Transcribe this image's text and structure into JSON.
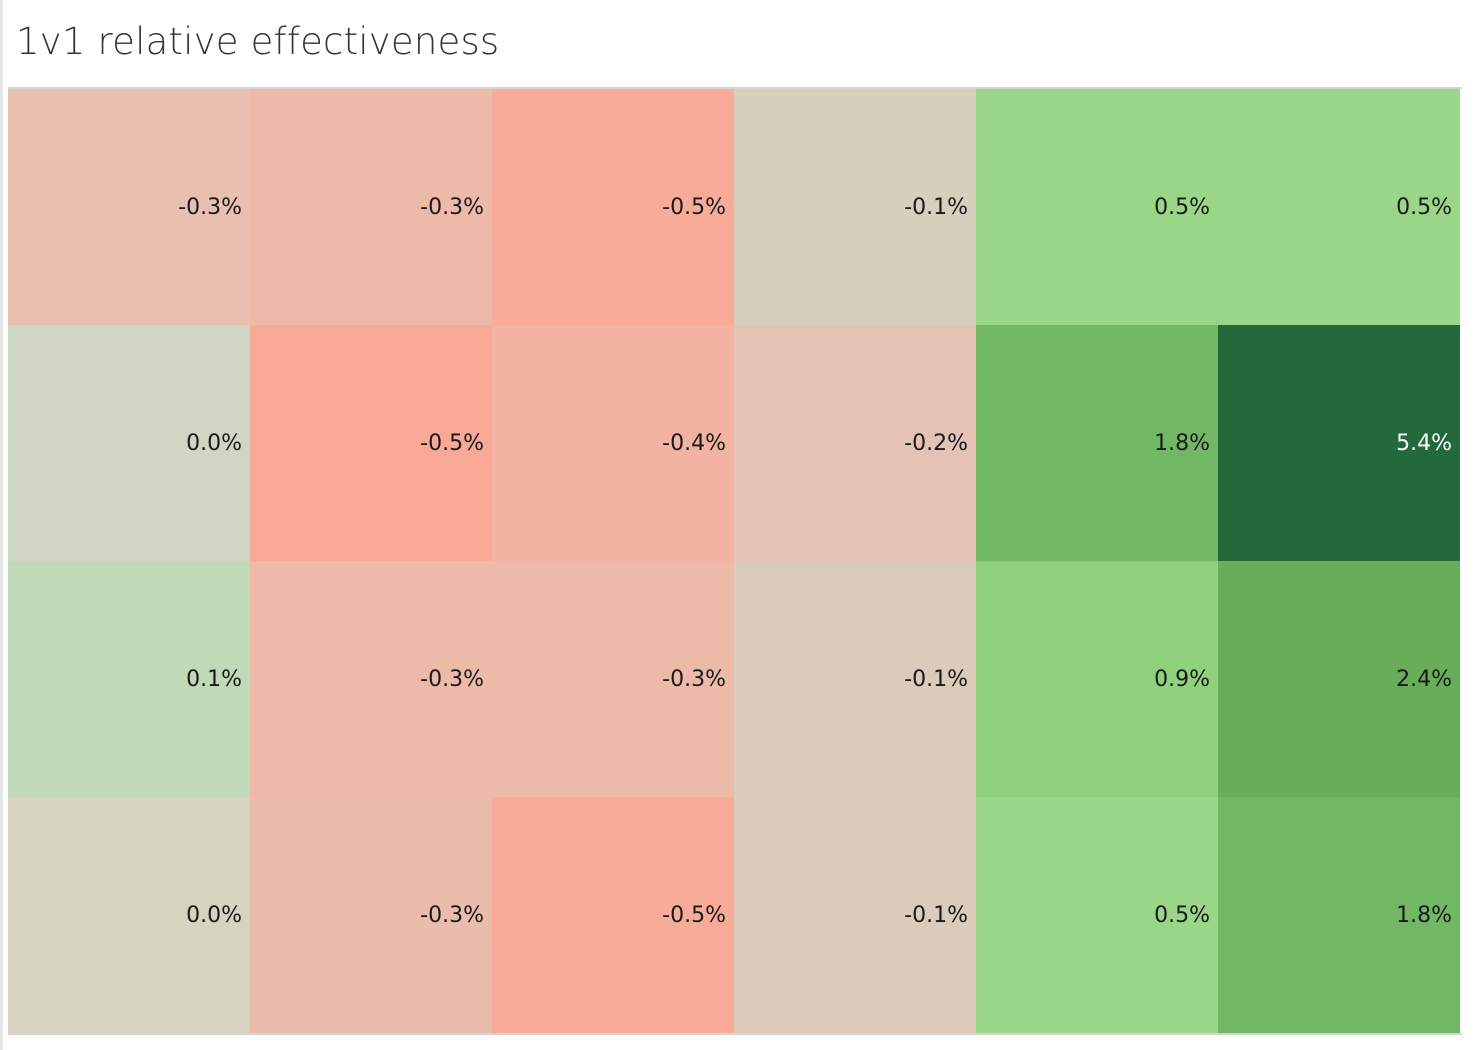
{
  "title": "1v1 relative effectiveness",
  "chart_data": {
    "type": "heatmap",
    "title": "1v1 relative effectiveness",
    "rows": 4,
    "columns": 6,
    "values": [
      [
        -0.3,
        -0.3,
        -0.5,
        -0.1,
        0.5,
        0.5
      ],
      [
        0.0,
        -0.5,
        -0.4,
        -0.2,
        1.8,
        5.4
      ],
      [
        0.1,
        -0.3,
        -0.3,
        -0.1,
        0.9,
        2.4
      ],
      [
        0.0,
        -0.3,
        -0.5,
        -0.1,
        0.5,
        1.8
      ]
    ],
    "labels": [
      [
        "-0.3%",
        "-0.3%",
        "-0.5%",
        "-0.1%",
        "0.5%",
        "0.5%"
      ],
      [
        "0.0%",
        "-0.5%",
        "-0.4%",
        "-0.2%",
        "1.8%",
        "5.4%"
      ],
      [
        "0.1%",
        "-0.3%",
        "-0.3%",
        "-0.1%",
        "0.9%",
        "2.4%"
      ],
      [
        "0.0%",
        "-0.3%",
        "-0.5%",
        "-0.1%",
        "0.5%",
        "1.8%"
      ]
    ],
    "colors": [
      [
        "#e9bfaf",
        "#edb9a8",
        "#f9ab99",
        "#d6cfbe",
        "#9ad688",
        "#9ad688"
      ],
      [
        "#cfd7c4",
        "#faa996",
        "#f3b3a2",
        "#e4c2b5",
        "#72b864",
        "#22693c"
      ],
      [
        "#c2d9b8",
        "#edb9a8",
        "#edb9a8",
        "#dbcbba",
        "#8fd17d",
        "#68ae5a"
      ],
      [
        "#d6d3c0",
        "#e9bcab",
        "#f9ab99",
        "#dbcbba",
        "#9ad688",
        "#72b864"
      ]
    ],
    "text_colors": [
      [
        "#1a1a1a",
        "#1a1a1a",
        "#1a1a1a",
        "#1a1a1a",
        "#1a1a1a",
        "#1a1a1a"
      ],
      [
        "#1a1a1a",
        "#1a1a1a",
        "#1a1a1a",
        "#1a1a1a",
        "#1a1a1a",
        "#ffffff"
      ],
      [
        "#1a1a1a",
        "#1a1a1a",
        "#1a1a1a",
        "#1a1a1a",
        "#1a1a1a",
        "#1a1a1a"
      ],
      [
        "#1a1a1a",
        "#1a1a1a",
        "#1a1a1a",
        "#1a1a1a",
        "#1a1a1a",
        "#1a1a1a"
      ]
    ],
    "color_scale": {
      "negative": "#faa996",
      "neutral": "#d6d3c0",
      "positive": "#22693c"
    },
    "legend": "none",
    "grid": false
  }
}
